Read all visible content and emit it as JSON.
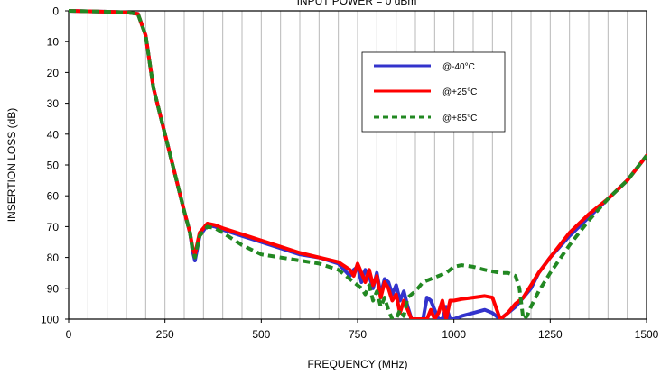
{
  "chart_data": {
    "type": "line",
    "title": "INPUT POWER = 0 dBm",
    "xlabel": "FREQUENCY (MHz)",
    "ylabel": "INSERTION LOSS (dB)",
    "xlim": [
      0,
      1500
    ],
    "ylim": [
      0,
      100
    ],
    "y_inverted": true,
    "grid": "vertical",
    "x_ticks": [
      "0",
      "250",
      "500",
      "750",
      "1000",
      "1250",
      "1500"
    ],
    "y_ticks": [
      "0",
      "10",
      "20",
      "30",
      "40",
      "50",
      "60",
      "70",
      "80",
      "90",
      "100"
    ],
    "legend_position": "top-right",
    "series": [
      {
        "name": "@-40°C",
        "color": "#3333cc",
        "dash": "solid",
        "x": [
          0,
          100,
          150,
          180,
          200,
          220,
          250,
          280,
          300,
          315,
          322,
          328,
          340,
          360,
          380,
          400,
          450,
          500,
          550,
          600,
          650,
          700,
          730,
          740,
          750,
          760,
          770,
          780,
          790,
          800,
          810,
          820,
          830,
          840,
          850,
          860,
          870,
          880,
          890,
          900,
          920,
          930,
          940,
          950,
          960,
          970,
          980,
          990,
          1000,
          1020,
          1050,
          1080,
          1100,
          1120,
          1140,
          1160,
          1180,
          1200,
          1220,
          1250,
          1300,
          1350,
          1400,
          1450,
          1500
        ],
        "y": [
          0,
          0.3,
          0.5,
          1,
          8,
          25,
          40,
          55,
          65,
          72,
          78,
          81,
          73,
          69.5,
          70,
          71,
          73,
          75,
          77,
          79,
          80,
          82,
          86,
          84,
          83,
          88,
          84,
          86,
          90,
          85,
          92,
          87,
          88,
          92,
          89,
          94,
          91,
          96,
          100,
          100,
          100,
          93,
          94,
          97,
          100,
          100,
          96,
          100,
          100,
          99,
          98,
          97,
          98,
          100,
          98,
          96,
          93,
          90,
          85,
          80,
          73,
          67,
          61,
          55,
          47
        ]
      },
      {
        "name": "@+25°C",
        "color": "#ff0000",
        "dash": "solid",
        "x": [
          0,
          100,
          150,
          180,
          200,
          220,
          250,
          280,
          300,
          315,
          322,
          328,
          340,
          360,
          380,
          400,
          450,
          500,
          550,
          600,
          650,
          700,
          730,
          740,
          750,
          760,
          770,
          780,
          790,
          800,
          810,
          820,
          830,
          840,
          850,
          860,
          870,
          880,
          890,
          900,
          920,
          930,
          940,
          950,
          960,
          970,
          980,
          990,
          1000,
          1020,
          1050,
          1080,
          1100,
          1120,
          1140,
          1160,
          1180,
          1200,
          1220,
          1250,
          1300,
          1350,
          1400,
          1450,
          1500
        ],
        "y": [
          0,
          0.3,
          0.5,
          1,
          8,
          25,
          40,
          55,
          65,
          72,
          77,
          79,
          72,
          69,
          69.5,
          70.5,
          72.5,
          74.5,
          76.5,
          78.5,
          80,
          81.5,
          84,
          86,
          82,
          85,
          88,
          84,
          89,
          86,
          93,
          88,
          90,
          94,
          92,
          98,
          94,
          97,
          100,
          100,
          100,
          100,
          97,
          100,
          98,
          94,
          100,
          94,
          94,
          93.5,
          93,
          92.5,
          93,
          100,
          98,
          95,
          93,
          89,
          85,
          80,
          72,
          66,
          61,
          55,
          47
        ]
      },
      {
        "name": "@+85°C",
        "color": "#228822",
        "dash": "dashed",
        "x": [
          0,
          100,
          150,
          180,
          200,
          220,
          250,
          280,
          300,
          315,
          322,
          328,
          340,
          360,
          380,
          400,
          450,
          500,
          550,
          600,
          650,
          700,
          720,
          740,
          760,
          770,
          780,
          790,
          800,
          810,
          820,
          830,
          840,
          850,
          860,
          870,
          880,
          890,
          900,
          920,
          940,
          960,
          980,
          1000,
          1020,
          1050,
          1080,
          1100,
          1120,
          1140,
          1160,
          1170,
          1180,
          1190,
          1200,
          1220,
          1250,
          1300,
          1350,
          1400,
          1450,
          1500
        ],
        "y": [
          0,
          0.3,
          0.5,
          1,
          8,
          25,
          40,
          55,
          65,
          72,
          78,
          80,
          73,
          70,
          70.5,
          72,
          76,
          79,
          80,
          81,
          82,
          84,
          86,
          88,
          90,
          92,
          89,
          94,
          91,
          96,
          93,
          97,
          100,
          100,
          97,
          99,
          93,
          92,
          91,
          88,
          87,
          86,
          85,
          83,
          82.5,
          83,
          84,
          84.5,
          85,
          85,
          86,
          90,
          100,
          99,
          96,
          91,
          85,
          76,
          68,
          61,
          55,
          47
        ]
      }
    ]
  }
}
